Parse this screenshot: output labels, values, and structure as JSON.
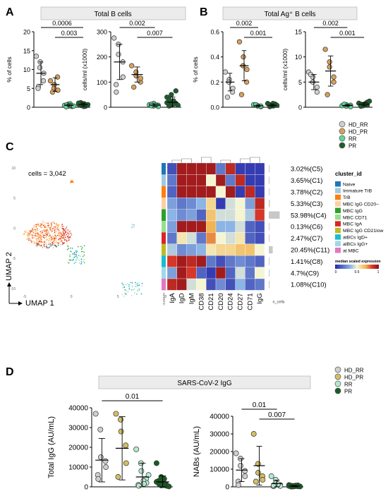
{
  "colors": {
    "HD_RR": "#cfcfcf",
    "HD_PR": "#d9a05b",
    "RR": "#5ed89a",
    "PR": "#1c5e2c",
    "HD_PR_D": "#d4bf63",
    "RR_D": "#b5ead0",
    "PR_D": "#155e22",
    "title_bg": "#ececec"
  },
  "panels": {
    "A": "A",
    "B": "B",
    "C": "C",
    "D": "D"
  },
  "legend_top": [
    {
      "label": "HD_RR",
      "color_key": "HD_RR"
    },
    {
      "label": "HD_PR",
      "color_key": "HD_PR"
    },
    {
      "label": "RR",
      "color_key": "RR"
    },
    {
      "label": "PR",
      "color_key": "PR"
    }
  ],
  "legend_bottom": [
    {
      "label": "HD_RR",
      "color_key": "HD_RR"
    },
    {
      "label": "HD_PR",
      "color_key": "HD_PR_D"
    },
    {
      "label": "RR",
      "color_key": "RR_D"
    },
    {
      "label": "PR",
      "color_key": "PR_D"
    }
  ],
  "chart_data": [
    {
      "id": "A1",
      "type": "scatter",
      "title": "Total B cells",
      "ylabel": "% of cells",
      "ylim": [
        0,
        20
      ],
      "yticks": [
        0,
        5,
        10,
        15,
        20
      ],
      "groups": [
        "HD_RR",
        "HD_PR",
        "RR",
        "PR"
      ],
      "values": [
        [
          13.5,
          12.0,
          10.5,
          9.0,
          7.0,
          5.5,
          5.0
        ],
        [
          7.0,
          6.0,
          5.0,
          4.5,
          8.0,
          4.0
        ],
        [
          0.5,
          0.3,
          0.8,
          0.2,
          0.4,
          0.6,
          0.1,
          0.9,
          0.5,
          0.3
        ],
        [
          0.8,
          0.4,
          1.0,
          0.6,
          0.3,
          1.2,
          0.5,
          0.9,
          0.2,
          0.7,
          1.1,
          0.4
        ]
      ],
      "means": [
        9.0,
        6.0,
        0.5,
        0.7
      ],
      "sds": [
        3.0,
        1.8,
        0.3,
        0.4
      ],
      "annotations": [
        {
          "label": "0.0006",
          "from": 0,
          "to": 3
        },
        {
          "label": "0.003",
          "from": 1,
          "to": 3
        }
      ]
    },
    {
      "id": "A2",
      "type": "scatter",
      "title": "",
      "ylabel": "cells/ml (x1000)",
      "ylim": [
        0,
        300
      ],
      "yticks": [
        0,
        100,
        200,
        300
      ],
      "groups": [
        "HD_RR",
        "HD_PR",
        "RR",
        "PR"
      ],
      "values": [
        [
          275,
          250,
          210,
          180,
          120,
          90,
          60
        ],
        [
          165,
          140,
          125,
          100,
          115,
          80
        ],
        [
          10,
          5,
          15,
          8,
          3,
          12,
          6,
          9
        ],
        [
          40,
          20,
          10,
          15,
          65,
          5,
          30,
          12,
          25,
          8,
          18,
          50
        ]
      ],
      "means": [
        180,
        130,
        8,
        20
      ],
      "sds": [
        70,
        30,
        5,
        20
      ],
      "annotations": [
        {
          "label": "0.002",
          "from": 0,
          "to": 2
        },
        {
          "label": "0.007",
          "from": 1,
          "to": 3
        }
      ]
    },
    {
      "id": "B1",
      "type": "scatter",
      "title": "Total Ag⁺ B cells",
      "ylabel": "% of cells",
      "ylim": [
        0,
        0.6
      ],
      "yticks": [
        0.0,
        0.2,
        0.4,
        0.6
      ],
      "groups": [
        "HD_RR",
        "HD_PR",
        "RR",
        "PR"
      ],
      "values": [
        [
          0.28,
          0.22,
          0.2,
          0.15,
          0.12,
          0.08
        ],
        [
          0.52,
          0.4,
          0.33,
          0.3,
          0.2,
          0.1
        ],
        [
          0.02,
          0.01,
          0.015,
          0.005,
          0.01,
          0.02
        ],
        [
          0.03,
          0.02,
          0.01,
          0.025,
          0.015,
          0.005,
          0.02,
          0.01,
          0.03,
          0.015
        ]
      ],
      "means": [
        0.2,
        0.33,
        0.012,
        0.015
      ],
      "sds": [
        0.07,
        0.12,
        0.006,
        0.01
      ],
      "annotations": [
        {
          "label": "0.002",
          "from": 0,
          "to": 2
        },
        {
          "label": "0.001",
          "from": 1,
          "to": 3
        }
      ]
    },
    {
      "id": "B2",
      "type": "scatter",
      "title": "",
      "ylabel": "cells/ml (x1000)",
      "ylim": [
        0,
        15
      ],
      "yticks": [
        0,
        5,
        10,
        15
      ],
      "groups": [
        "HD_RR",
        "HD_PR",
        "RR",
        "PR"
      ],
      "values": [
        [
          7.0,
          6.0,
          5.0,
          4.0,
          3.0,
          6.5
        ],
        [
          11.5,
          9.0,
          8.0,
          6.0,
          5.0,
          2.5
        ],
        [
          0.3,
          0.5,
          0.2,
          0.4,
          0.1,
          0.6
        ],
        [
          0.8,
          0.5,
          0.3,
          1.0,
          0.4,
          0.6,
          0.2,
          0.7,
          0.5,
          1.2
        ]
      ],
      "means": [
        5.0,
        7.2,
        0.35,
        0.6
      ],
      "sds": [
        1.5,
        3.0,
        0.2,
        0.3
      ],
      "annotations": [
        {
          "label": "0.002",
          "from": 0,
          "to": 2
        },
        {
          "label": "0.001",
          "from": 1,
          "to": 3
        }
      ]
    },
    {
      "id": "C_heatmap",
      "type": "heatmap",
      "cells_label": "cells = 3,042",
      "umap_xlabel": "UMAP 1",
      "umap_ylabel": "UMAP 2",
      "umap_xticks": [
        "-5",
        "0",
        "5",
        "10"
      ],
      "umap_yticks": [
        "10",
        "5",
        "0",
        "-5",
        "-10"
      ],
      "columns": [
        "IgA",
        "IgD",
        "IgM",
        "CD38",
        "CD21",
        "CD20",
        "CD24",
        "CD27",
        "CD71",
        "IgG"
      ],
      "rows": [
        "3.02%(C5)",
        "3.65%(C1)",
        "3.78%(C2)",
        "5.33%(C3)",
        "53.98%(C4)",
        "0.13%(C6)",
        "2.47%(C7)",
        "20.45%(C11)",
        "1.41%(C8)",
        "4.7%(C9)",
        "1.08%(C10)"
      ],
      "row_cluster_colors": [
        "#1f77b4",
        "#9ecae1",
        "#ff7f0e",
        "#fdd0a2",
        "#2ca02c",
        "#98df8a",
        "#d62728",
        "#bcbd22",
        "#17becf",
        "#9edae5",
        "#e377c2"
      ],
      "matrix": [
        [
          0.1,
          0.95,
          0.95,
          0.95,
          0.95,
          0.2,
          0.9,
          0.05,
          0.05,
          0.05
        ],
        [
          0.2,
          0.95,
          0.95,
          0.95,
          0.5,
          0.95,
          0.2,
          0.9,
          0.05,
          0.05
        ],
        [
          0.15,
          0.95,
          0.95,
          0.95,
          0.95,
          0.5,
          0.95,
          0.05,
          0.9,
          0.05
        ],
        [
          0.3,
          0.2,
          0.25,
          0.35,
          0.6,
          0.05,
          0.45,
          0.5,
          0.3,
          0.9
        ],
        [
          0.35,
          0.25,
          0.3,
          0.15,
          0.65,
          0.45,
          0.45,
          0.5,
          0.4,
          0.85
        ],
        [
          0.3,
          0.95,
          0.95,
          0.95,
          0.7,
          0.35,
          0.35,
          0.45,
          0.15,
          0.1
        ],
        [
          0.2,
          0.55,
          0.45,
          0.2,
          0.75,
          0.5,
          0.45,
          0.55,
          0.15,
          0.1
        ],
        [
          0.4,
          0.25,
          0.3,
          0.35,
          0.55,
          0.6,
          0.6,
          0.65,
          0.65,
          0.5
        ],
        [
          0.85,
          0.95,
          0.9,
          0.95,
          0.2,
          0.1,
          0.2,
          0.25,
          0.2,
          0.15
        ],
        [
          0.3,
          0.95,
          0.85,
          0.15,
          0.05,
          0.95,
          0.15,
          0.45,
          0.2,
          0.5
        ],
        [
          0.9,
          0.95,
          0.45,
          0.5,
          0.1,
          0.25,
          0.1,
          0.35,
          0.15,
          0.2
        ]
      ],
      "legend_title": "cluster_id",
      "legend_items": [
        {
          "label": "Naive",
          "color": "#1f77b4"
        },
        {
          "label": "Immature TrB",
          "color": "#9ecae1"
        },
        {
          "label": "TrB",
          "color": "#ff7f0e"
        },
        {
          "label": "MBC IgG CD20−",
          "color": "#fdd0a2"
        },
        {
          "label": "MBC IgG",
          "color": "#2ca02c"
        },
        {
          "label": "MBC CD71",
          "color": "#98df8a"
        },
        {
          "label": "MBC IgA",
          "color": "#d62728"
        },
        {
          "label": "MBC IgG CD21low",
          "color": "#bcbd22"
        },
        {
          "label": "atBCs IgD+",
          "color": "#17becf"
        },
        {
          "label": "atBCs IgG+",
          "color": "#9edae5"
        },
        {
          "label": "at MBC",
          "color": "#e377c2"
        }
      ],
      "colorbar_title": "median scaled expression",
      "colorbar_ticks": [
        "0",
        "0.5",
        "1"
      ],
      "cluster_axis_label": "cluster_id",
      "ncells_label": "n_cells"
    },
    {
      "id": "D1",
      "type": "scatter",
      "title": "SARS-CoV-2 IgG",
      "ylabel": "Total IgG (AU/mL)",
      "ylim": [
        0,
        40000
      ],
      "yticks": [
        0,
        10000,
        20000,
        30000,
        40000
      ],
      "groups": [
        "HD_RR",
        "HD_PR",
        "RR",
        "PR"
      ],
      "values": [
        [
          37000,
          29000,
          15000,
          13000,
          10000,
          6000,
          4000
        ],
        [
          37000,
          34000,
          28000,
          21000,
          12000,
          5000
        ],
        [
          19000,
          12000,
          8000,
          4000,
          2000,
          1000,
          500,
          3000,
          1500,
          6000
        ],
        [
          12000,
          5000,
          2000,
          1000,
          500,
          3000,
          1500,
          800,
          4000,
          200,
          2500,
          700
        ]
      ],
      "means": [
        13500,
        19500,
        5000,
        2500
      ],
      "sds": [
        11000,
        16000,
        7000,
        3000
      ],
      "annotations": [
        {
          "label": "0.01",
          "from": 0,
          "to": 3
        }
      ]
    },
    {
      "id": "D2",
      "type": "scatter",
      "title": "",
      "ylabel": "NABs (AU/mL)",
      "ylim": [
        0,
        40000
      ],
      "yticks": [
        0,
        10000,
        20000,
        30000,
        40000
      ],
      "groups": [
        "HD_RR",
        "HD_PR",
        "RR",
        "PR"
      ],
      "values": [
        [
          19000,
          16000,
          12000,
          9000,
          6000,
          3000,
          1000
        ],
        [
          30000,
          13000,
          8000,
          6000,
          4000,
          3000
        ],
        [
          6000,
          4000,
          2000,
          1000,
          500,
          300,
          800,
          1500
        ],
        [
          1000,
          500,
          200,
          800,
          300,
          600,
          100,
          400,
          700,
          200,
          500,
          300
        ]
      ],
      "means": [
        9500,
        12000,
        1800,
        400
      ],
      "sds": [
        6500,
        11000,
        2000,
        300
      ],
      "annotations": [
        {
          "label": "0.01",
          "from": 0,
          "to": 2
        },
        {
          "label": "0.007",
          "from": 1,
          "to": 3
        }
      ]
    }
  ]
}
